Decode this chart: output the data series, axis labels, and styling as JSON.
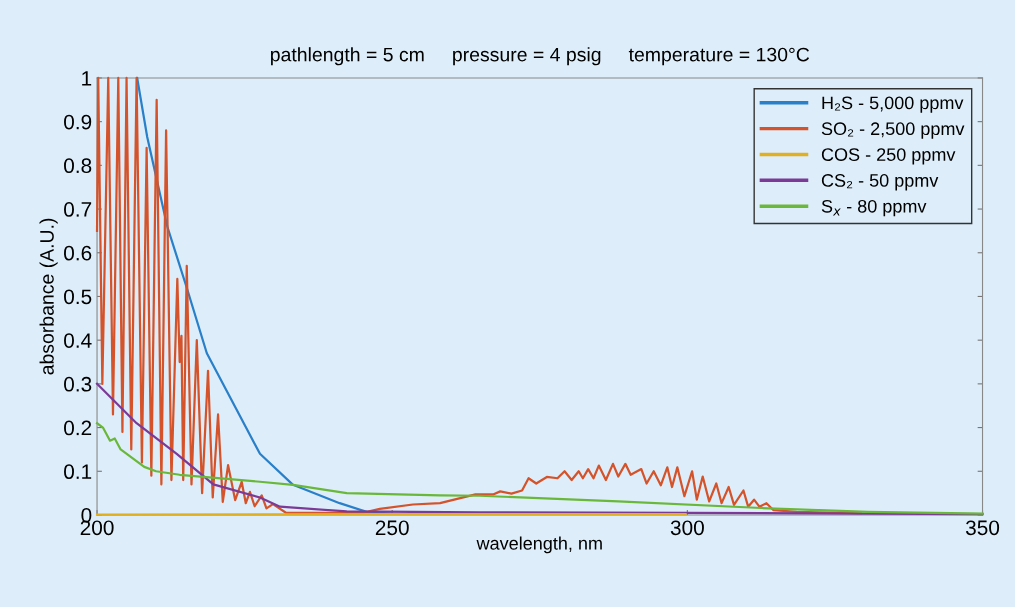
{
  "chart_data": {
    "type": "line",
    "title": "pathlength = 5 cm     pressure = 4 psig     temperature = 130°C",
    "xlabel": "wavelength, nm",
    "ylabel": "absorbance (A.U.)",
    "xlim": [
      200,
      350
    ],
    "xticks": [
      200,
      250,
      300,
      350
    ],
    "ylim": [
      0,
      1
    ],
    "yticks": [
      0,
      0.1,
      0.2,
      0.3,
      0.4,
      0.5,
      0.6,
      0.7,
      0.8,
      0.9,
      1
    ],
    "grid": false,
    "legend": "top right",
    "marker": "none",
    "line_style": "solid",
    "series": [
      {
        "name": "H₂S - 5,000 ppmv",
        "color": "#2a7fc9",
        "x": [
          206.8,
          208.5,
          211.9,
          215.2,
          218.6,
          227.6,
          233.2,
          241.1,
          245.7,
          250
        ],
        "values": [
          1.0,
          0.865,
          0.66,
          0.52,
          0.37,
          0.14,
          0.069,
          0.027,
          0.007,
          0.003
        ]
      },
      {
        "name": "SO₂ - 2,500 ppmv",
        "color": "#d4532a",
        "x": [
          200,
          200.2,
          200.9,
          201.9,
          202.7,
          203.6,
          204.3,
          205.0,
          205.8,
          206.7,
          207.6,
          208.4,
          209.2,
          210.1,
          210.9,
          211.7,
          212.6,
          213.6,
          214.0,
          214.3,
          214.6,
          215.2,
          216.0,
          216.9,
          217.8,
          218.8,
          219.6,
          220.5,
          221.3,
          222.2,
          223.4,
          224.5,
          225.2,
          225.9,
          226.7,
          227.9,
          228.7,
          229.8,
          232,
          245,
          247.9,
          253.5,
          258.1,
          264.1,
          267.1,
          268.3,
          270.2,
          272.0,
          273.1,
          274.4,
          276.2,
          278.0,
          279.2,
          280.4,
          281.6,
          282.3,
          283.2,
          284.1,
          285.0,
          286.2,
          287.4,
          288.3,
          289.5,
          290.4,
          292.2,
          293.1,
          294.3,
          295.5,
          296.6,
          297.4,
          298.3,
          299.5,
          300.8,
          301.6,
          302.6,
          303.7,
          304.9,
          305.8,
          307.0,
          307.9,
          309.5,
          310.3,
          311.3,
          312.2,
          313.4,
          314.6,
          318.5,
          329.4
        ],
        "values": [
          0.65,
          1.0,
          0.3,
          1.0,
          0.23,
          1.0,
          0.19,
          1.0,
          0.15,
          1.0,
          0.12,
          0.84,
          0.09,
          0.95,
          0.07,
          0.88,
          0.08,
          0.54,
          0.35,
          0.41,
          0.08,
          0.57,
          0.07,
          0.4,
          0.05,
          0.33,
          0.04,
          0.23,
          0.03,
          0.114,
          0.034,
          0.076,
          0.027,
          0.053,
          0.02,
          0.045,
          0.015,
          0.025,
          0.005,
          0.005,
          0.014,
          0.024,
          0.027,
          0.047,
          0.047,
          0.054,
          0.049,
          0.056,
          0.084,
          0.072,
          0.087,
          0.084,
          0.1,
          0.08,
          0.1,
          0.084,
          0.105,
          0.084,
          0.113,
          0.08,
          0.117,
          0.088,
          0.117,
          0.092,
          0.105,
          0.072,
          0.1,
          0.068,
          0.109,
          0.064,
          0.109,
          0.043,
          0.1,
          0.035,
          0.088,
          0.031,
          0.072,
          0.027,
          0.064,
          0.023,
          0.056,
          0.019,
          0.035,
          0.019,
          0.027,
          0.011,
          0.007,
          0.004
        ]
      },
      {
        "name": "COS - 250 ppmv",
        "color": "#e0b020",
        "x": [
          200,
          250,
          299.7
        ],
        "values": [
          0.001,
          0.002,
          0.002
        ]
      },
      {
        "name": "CS₂ - 50 ppmv",
        "color": "#7b3a96",
        "x": [
          200,
          206.7,
          213.5,
          219.7,
          227.6,
          231.0,
          242.3,
          264.8,
          300,
          330,
          350
        ],
        "values": [
          0.3,
          0.21,
          0.14,
          0.07,
          0.04,
          0.019,
          0.008,
          0.006,
          0.005,
          0.003,
          0.002
        ]
      },
      {
        "name": "S$_{x}$ - 80 ppmv",
        "color": "#6ab83a",
        "x": [
          200,
          201,
          202.2,
          203,
          204,
          206,
          208,
          210,
          214,
          220,
          227.6,
          233.2,
          242.3,
          258.1,
          264.8,
          288.3,
          312.5,
          330.6,
          350
        ],
        "values": [
          0.21,
          0.2,
          0.17,
          0.175,
          0.15,
          0.13,
          0.11,
          0.1,
          0.092,
          0.085,
          0.076,
          0.069,
          0.05,
          0.045,
          0.044,
          0.031,
          0.016,
          0.007,
          0.003
        ]
      }
    ]
  }
}
